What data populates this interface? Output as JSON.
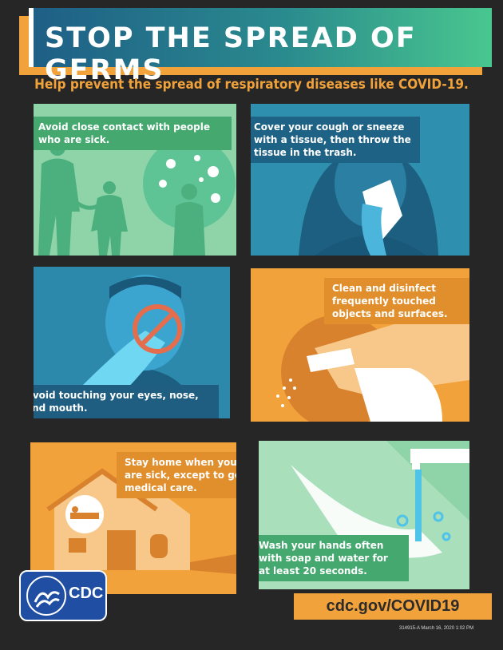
{
  "title": "STOP THE SPREAD OF GERMS",
  "subtitle": "Help prevent the spread of respiratory diseases like COVID-19.",
  "tips": [
    {
      "text": "Avoid close contact with people who are sick."
    },
    {
      "text": "Cover your cough or sneeze with a tissue, then throw the tissue in the trash."
    },
    {
      "text": "Avoid touching your eyes, nose, and mouth."
    },
    {
      "text": "Clean and disinfect frequently touched objects and surfaces."
    },
    {
      "text": "Stay home when you are sick, except to get medical care."
    },
    {
      "text": "Wash your hands often with soap and water for at least 20 seconds."
    }
  ],
  "footer": {
    "url": "cdc.gov/COVID19",
    "code": "314915-A  March 16, 2020 1:02 PM",
    "logo_text": "CDC"
  },
  "colors": {
    "background": "#262626",
    "orange": "#f2a23a",
    "teal": "#1e6f8f",
    "green": "#8fd3a8"
  }
}
